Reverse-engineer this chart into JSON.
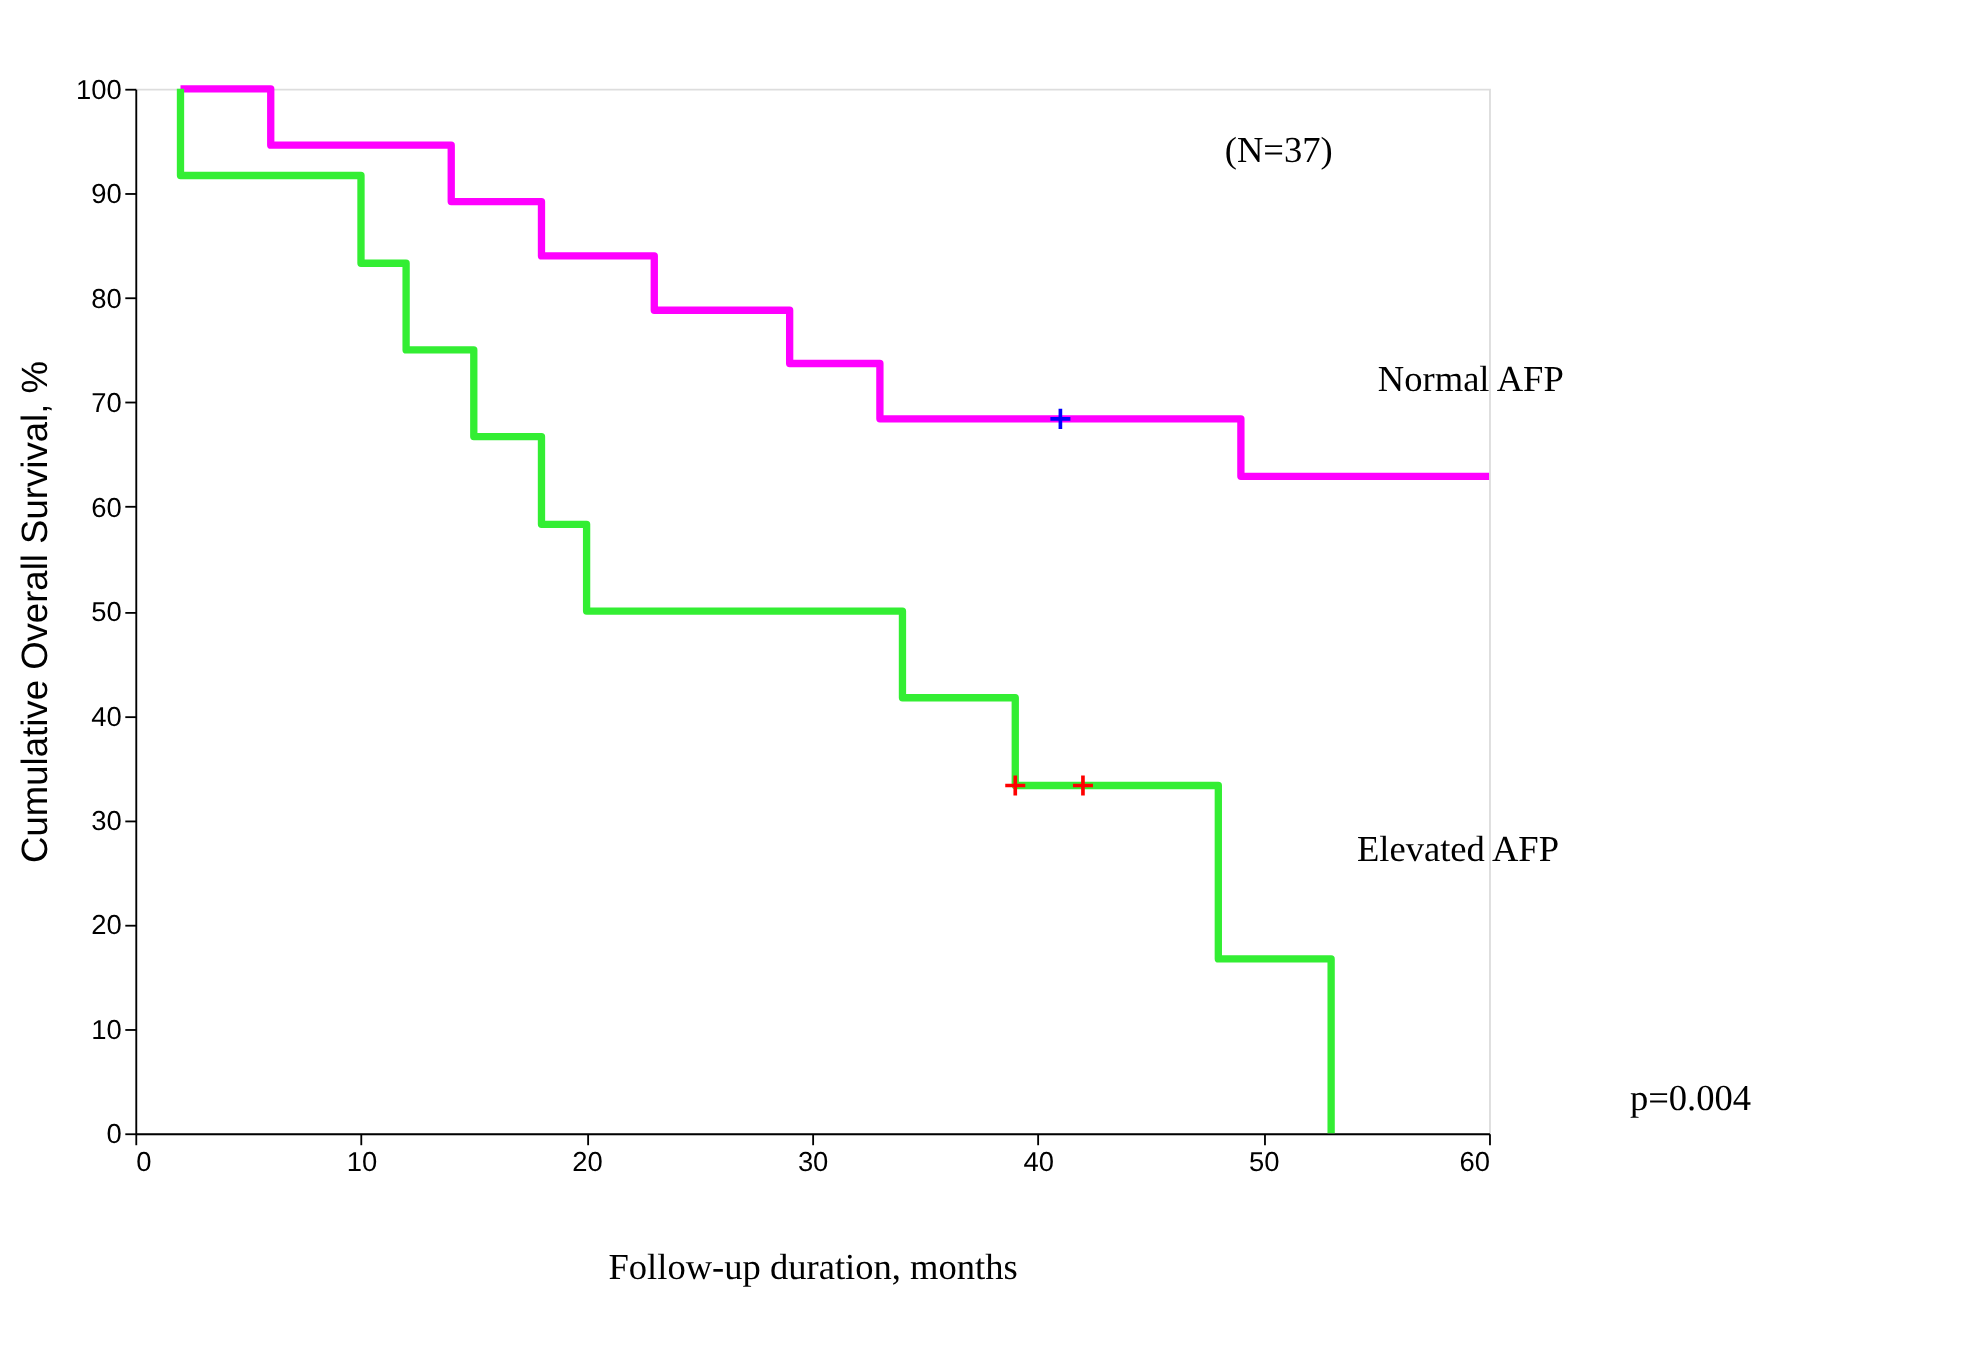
{
  "chart_data": {
    "type": "step",
    "xlabel": "Follow-up duration, months",
    "ylabel": "Cumulative Overall Survival, %",
    "xlim": [
      0,
      60
    ],
    "xticks": [
      0,
      10,
      20,
      30,
      40,
      50,
      60
    ],
    "ylim": [
      0,
      100
    ],
    "yticks": [
      0,
      10,
      20,
      30,
      40,
      50,
      60,
      70,
      80,
      90,
      100
    ],
    "grid": false,
    "legend": false,
    "line_style": "solid",
    "annotations": [
      "(N=37)",
      "p=0.004"
    ],
    "series": [
      {
        "name": "Normal AFP",
        "color": "#ff00ff",
        "x": [
          2,
          6,
          14,
          18,
          23,
          29,
          33,
          49,
          60
        ],
        "values": [
          100,
          94.6,
          89.2,
          84,
          78.8,
          73.7,
          68.4,
          62.9,
          62.9
        ]
      },
      {
        "name": "Elevated AFP",
        "color": "#33ee33",
        "x": [
          2,
          2,
          10,
          12,
          15,
          18,
          20,
          34,
          39,
          48,
          53,
          53
        ],
        "values": [
          100,
          91.7,
          83.3,
          75,
          66.7,
          58.3,
          50,
          41.7,
          33.3,
          16.7,
          0,
          0
        ]
      },
      {
        "type": "scatter",
        "marker": "cross",
        "color": "#0000ff",
        "x": [
          41
        ],
        "values": [
          68.4
        ]
      },
      {
        "type": "scatter",
        "marker": "cross",
        "color": "#ff0000",
        "x": [
          39,
          42
        ],
        "values": [
          33.3,
          33.3
        ]
      }
    ]
  }
}
